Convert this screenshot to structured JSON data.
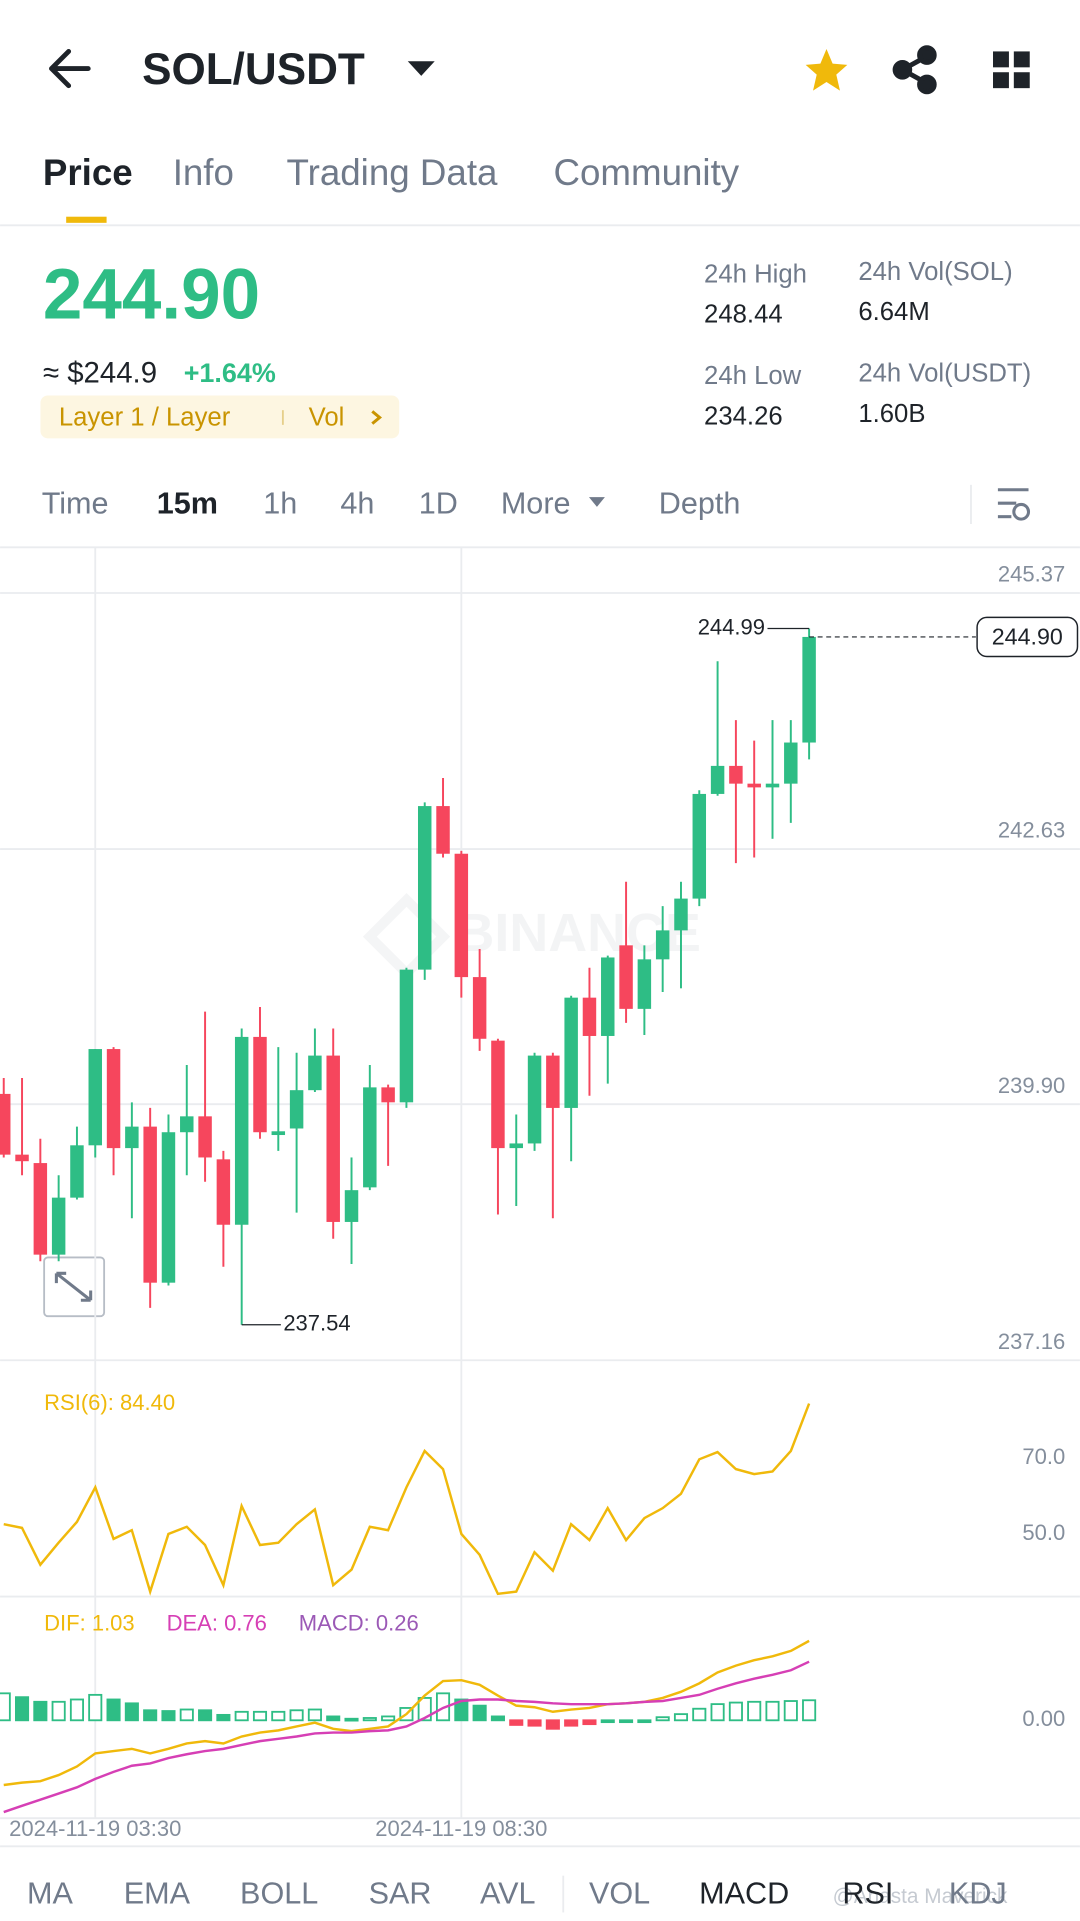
{
  "header": {
    "pair": "SOL/USDT"
  },
  "tabs": [
    "Price",
    "Info",
    "Trading Data",
    "Community"
  ],
  "ticker": {
    "price": "244.90",
    "approx": "≈ $244.9",
    "change": "+1.64%",
    "tag": "Layer 1 / Layer",
    "tag_vol": "Vol",
    "stats": [
      {
        "label": "24h High",
        "value": "248.44"
      },
      {
        "label": "24h Vol(SOL)",
        "value": "6.64M"
      },
      {
        "label": "24h Low",
        "value": "234.26"
      },
      {
        "label": "24h Vol(USDT)",
        "value": "1.60B"
      }
    ]
  },
  "intervals": [
    "Time",
    "15m",
    "1h",
    "4h",
    "1D",
    "More",
    "Depth"
  ],
  "indicators": [
    "MA",
    "EMA",
    "BOLL",
    "SAR",
    "AVL",
    "VOL",
    "MACD",
    "RSI",
    "KDJ"
  ],
  "watermarks": [
    "BINANCE",
    "@Anasta Maverick"
  ],
  "chart_data": [
    {
      "type": "candlestick",
      "x": [
        null,
        null,
        null,
        null,
        null,
        "2024-11-19 03:30",
        null,
        null,
        null,
        null,
        null,
        null,
        null,
        null,
        null,
        null,
        null,
        null,
        null,
        null,
        null,
        null,
        null,
        null,
        null,
        "2024-11-19 08:30",
        null,
        null,
        null,
        null,
        null,
        null,
        null,
        null,
        null,
        null,
        null,
        null,
        null,
        null,
        null,
        null,
        null,
        null,
        null
      ],
      "open": [
        240.01,
        239.36,
        239.27,
        238.29,
        238.9,
        239.46,
        240.49,
        239.43,
        239.66,
        237.99,
        239.6,
        239.77,
        239.31,
        238.61,
        240.62,
        239.57,
        239.64,
        240.05,
        240.42,
        238.64,
        239.01,
        240.08,
        239.92,
        241.34,
        243.09,
        242.58,
        241.26,
        240.58,
        239.43,
        239.48,
        240.42,
        239.86,
        241.04,
        240.63,
        241.6,
        240.92,
        241.45,
        241.76,
        242.1,
        243.22,
        243.52,
        243.33,
        243.29,
        243.33,
        243.77
      ],
      "high": [
        240.18,
        240.18,
        239.53,
        239.14,
        239.66,
        240.49,
        240.51,
        239.92,
        239.86,
        239.79,
        240.32,
        240.89,
        239.4,
        240.71,
        240.94,
        240.51,
        240.45,
        240.71,
        240.71,
        239.33,
        240.32,
        240.11,
        241.36,
        243.13,
        243.39,
        242.61,
        241.56,
        240.6,
        239.79,
        240.45,
        240.45,
        241.06,
        241.36,
        241.49,
        242.28,
        241.6,
        242.02,
        242.28,
        243.26,
        244.64,
        244.01,
        243.79,
        244.01,
        244.01,
        244.99
      ],
      "low": [
        239.33,
        239.14,
        238.22,
        238.22,
        238.88,
        239.33,
        239.14,
        238.68,
        237.72,
        237.96,
        239.14,
        239.07,
        238.16,
        237.54,
        239.53,
        239.4,
        238.74,
        240.03,
        238.46,
        238.19,
        238.98,
        239.24,
        239.86,
        241.23,
        242.54,
        241.04,
        240.47,
        238.72,
        238.81,
        239.4,
        238.68,
        239.29,
        239.99,
        240.12,
        240.77,
        240.64,
        241.1,
        241.14,
        242.02,
        243.2,
        242.48,
        242.54,
        242.74,
        242.91,
        243.59
      ],
      "close": [
        239.36,
        239.29,
        238.29,
        238.9,
        239.46,
        240.49,
        239.43,
        239.66,
        237.99,
        239.6,
        239.77,
        239.33,
        238.61,
        240.62,
        239.6,
        239.61,
        240.05,
        240.42,
        238.64,
        238.98,
        240.08,
        239.92,
        241.34,
        243.09,
        242.58,
        241.26,
        240.6,
        239.43,
        239.48,
        240.42,
        239.86,
        241.04,
        240.63,
        241.47,
        240.92,
        241.45,
        241.76,
        242.1,
        243.22,
        243.52,
        243.33,
        243.29,
        243.33,
        243.77,
        244.9
      ],
      "up_color": "#2ebd85",
      "down_color": "#f6465d",
      "ylim": [
        237.16,
        245.82
      ],
      "yticks": [
        237.16,
        {
          "value": 239.9,
          "label": "239.90"
        },
        242.63,
        245.37
      ],
      "last_price": {
        "value": 244.9,
        "label": "244.90"
      },
      "grid": true
    },
    {
      "type": "line",
      "title": "RSI(6): 84.40",
      "color": "#f0b90b",
      "values": [
        52.6,
        51.6,
        41.9,
        47.7,
        53.2,
        62.3,
        48.7,
        51.0,
        34.8,
        50.0,
        51.9,
        47.1,
        36.5,
        57.4,
        47.1,
        47.7,
        52.6,
        56.5,
        36.5,
        40.6,
        51.9,
        51.0,
        62.3,
        71.9,
        67.1,
        50.0,
        44.5,
        34.2,
        34.8,
        45.2,
        40.3,
        52.6,
        48.4,
        56.8,
        48.4,
        54.2,
        56.8,
        60.6,
        69.7,
        71.6,
        67.1,
        65.8,
        66.5,
        71.9,
        84.4
      ],
      "ylim": [
        33.5,
        95.5
      ],
      "yticks": [
        {
          "value": 50,
          "label": "50.0"
        },
        {
          "value": 70,
          "label": "70.0"
        }
      ]
    },
    {
      "type": "macd",
      "series": [
        {
          "name": "DIF: 1.03",
          "color": "#f0b90b",
          "values": [
            -0.84,
            -0.81,
            -0.79,
            -0.71,
            -0.6,
            -0.43,
            -0.4,
            -0.37,
            -0.43,
            -0.37,
            -0.3,
            -0.27,
            -0.3,
            -0.21,
            -0.16,
            -0.13,
            -0.08,
            -0.03,
            -0.11,
            -0.14,
            -0.11,
            -0.08,
            0.08,
            0.32,
            0.51,
            0.52,
            0.46,
            0.32,
            0.19,
            0.17,
            0.11,
            0.14,
            0.16,
            0.21,
            0.22,
            0.24,
            0.29,
            0.37,
            0.48,
            0.62,
            0.71,
            0.78,
            0.83,
            0.9,
            1.03
          ]
        },
        {
          "name": "DEA: 0.76",
          "color": "#d63fb5",
          "values": [
            -1.19,
            -1.11,
            -1.03,
            -0.95,
            -0.87,
            -0.76,
            -0.67,
            -0.59,
            -0.56,
            -0.49,
            -0.44,
            -0.4,
            -0.37,
            -0.32,
            -0.27,
            -0.24,
            -0.21,
            -0.17,
            -0.16,
            -0.16,
            -0.14,
            -0.13,
            -0.08,
            0.03,
            0.16,
            0.25,
            0.27,
            0.27,
            0.25,
            0.24,
            0.22,
            0.21,
            0.21,
            0.21,
            0.22,
            0.24,
            0.25,
            0.29,
            0.33,
            0.41,
            0.48,
            0.54,
            0.59,
            0.65,
            0.76
          ]
        },
        {
          "name": "MACD: 0.26",
          "color": "#9b59b6",
          "values": [
            0.35,
            0.3,
            0.24,
            0.24,
            0.27,
            0.33,
            0.27,
            0.22,
            0.13,
            0.12,
            0.14,
            0.13,
            0.07,
            0.11,
            0.11,
            0.11,
            0.13,
            0.14,
            0.05,
            0.02,
            0.03,
            0.05,
            0.16,
            0.29,
            0.35,
            0.27,
            0.19,
            0.05,
            -0.06,
            -0.07,
            -0.11,
            -0.07,
            -0.05,
            0,
            0,
            0,
            0.04,
            0.08,
            0.15,
            0.21,
            0.23,
            0.24,
            0.24,
            0.25,
            0.26
          ]
        }
      ],
      "up_color": "#2ebd85",
      "down_color": "#f6465d",
      "ylim": [
        -1.27,
        1.59
      ],
      "yticks": [
        {
          "value": 0,
          "label": "0.00"
        }
      ]
    }
  ]
}
